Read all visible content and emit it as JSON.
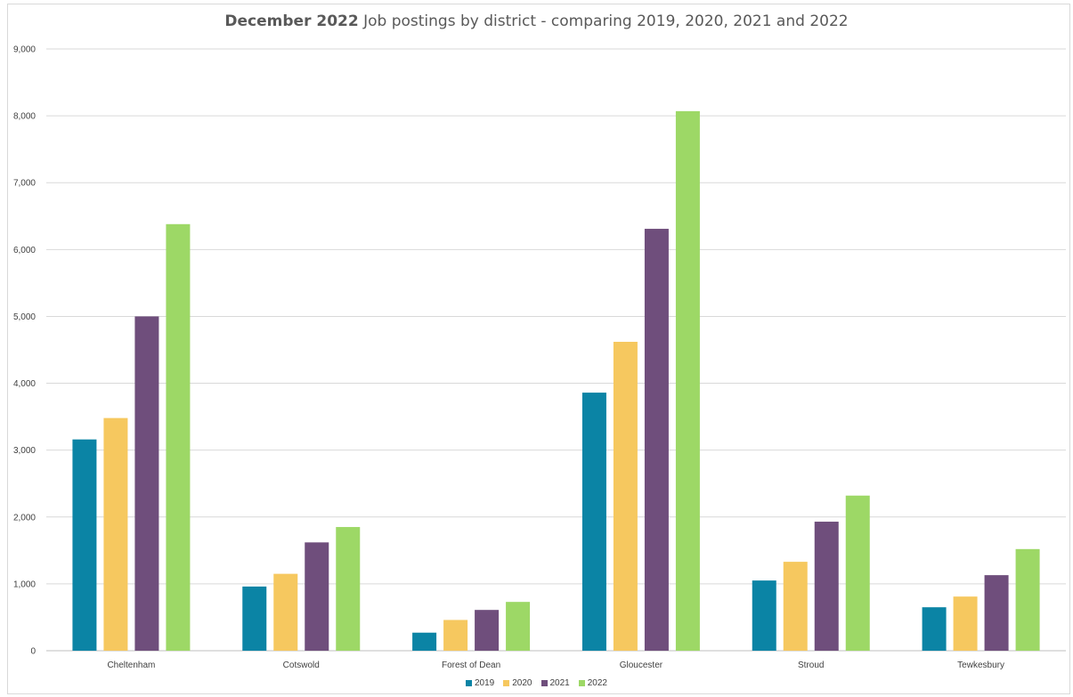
{
  "chart_data": {
    "type": "bar",
    "title_bold": "December 2022",
    "title_rest": " Job postings by district - comparing 2019, 2020, 2021 and 2022",
    "categories": [
      "Cheltenham",
      "Cotswold",
      "Forest of Dean",
      "Gloucester",
      "Stroud",
      "Tewkesbury"
    ],
    "series": [
      {
        "name": "2019",
        "color": "#0b84a5",
        "values": [
          3160,
          960,
          270,
          3860,
          1050,
          650
        ]
      },
      {
        "name": "2020",
        "color": "#f6c85f",
        "values": [
          3480,
          1150,
          460,
          4620,
          1330,
          810
        ]
      },
      {
        "name": "2021",
        "color": "#6f4e7c",
        "values": [
          5000,
          1620,
          610,
          6310,
          1930,
          1130
        ]
      },
      {
        "name": "2022",
        "color": "#9dd866",
        "values": [
          6380,
          1850,
          730,
          8070,
          2320,
          1520
        ]
      }
    ],
    "ylim": [
      0,
      9000
    ],
    "yticks": [
      0,
      1000,
      2000,
      3000,
      4000,
      5000,
      6000,
      7000,
      8000,
      9000
    ],
    "ytick_labels": [
      "0",
      "1,000",
      "2,000",
      "3,000",
      "4,000",
      "5,000",
      "6,000",
      "7,000",
      "8,000",
      "9,000"
    ],
    "grid": true,
    "legend_position": "bottom"
  }
}
